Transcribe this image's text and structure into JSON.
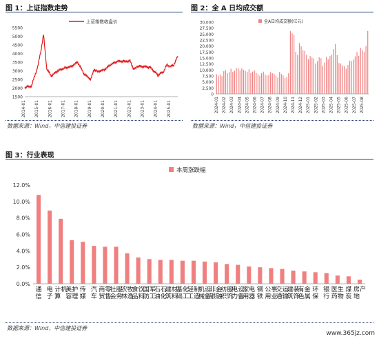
{
  "fig1": {
    "title": "图 1：上证指数走势",
    "source": "数据来源：Wind，中信建投证券"
  },
  "fig2": {
    "title": "图 2：全 A 日均成交额",
    "source": "数据来源：Wind，中信建投证券"
  },
  "fig3": {
    "title": "图 3：行业表现",
    "source": "数据来源：Wind，中信建投证券"
  },
  "watermark": "www.365jz.com",
  "chart_data": [
    {
      "type": "line",
      "legend": "上证指数收盘价",
      "x": [
        "2014-01",
        "2014-07",
        "2015-01",
        "2015-04",
        "2015-06",
        "2015-09",
        "2016-01",
        "2016-07",
        "2017-01",
        "2017-07",
        "2018-01",
        "2018-07",
        "2019-01",
        "2019-04",
        "2019-07",
        "2020-01",
        "2020-07",
        "2021-01",
        "2021-07",
        "2022-01",
        "2022-04",
        "2022-07",
        "2023-01",
        "2023-07",
        "2024-01",
        "2024-02",
        "2024-07",
        "2024-10",
        "2025-01",
        "2025-04",
        "2025-08"
      ],
      "values": [
        2050,
        2100,
        3300,
        4300,
        5100,
        3100,
        2700,
        3000,
        3150,
        3250,
        3500,
        2800,
        2500,
        3100,
        2950,
        3050,
        3350,
        3550,
        3550,
        3550,
        3050,
        3250,
        3250,
        3200,
        2800,
        2750,
        2950,
        3350,
        3250,
        3300,
        3850
      ],
      "x_ticks": [
        "2014-01",
        "2015-01",
        "2016-01",
        "2017-01",
        "2018-01",
        "2019-01",
        "2020-01",
        "2021-01",
        "2022-01",
        "2023-01",
        "2024-01",
        "2025-01"
      ],
      "ylim": [
        1500,
        5500
      ],
      "y_ticks": [
        1500,
        2000,
        2500,
        3000,
        3500,
        4000,
        4500,
        5000,
        5500
      ],
      "color": "#e31a1c"
    },
    {
      "type": "bar",
      "legend": "全A日均成交额(亿元)",
      "values": [
        8200,
        7600,
        8100,
        7400,
        9500,
        9900,
        8700,
        9100,
        10500,
        9200,
        9700,
        10700,
        10800,
        9800,
        10600,
        10100,
        9600,
        9300,
        10300,
        8700,
        9300,
        9800,
        8800,
        8300,
        7600,
        8700,
        9300,
        8100,
        7700,
        7900,
        9100,
        8600,
        8400,
        7600,
        6800,
        9200,
        8300,
        7700,
        6700,
        7100,
        8600,
        26200,
        25300,
        24700,
        17600,
        16300,
        21200,
        19900,
        18200,
        18000,
        16400,
        14500,
        15800,
        15200,
        14800,
        12600,
        13700,
        15300,
        14900,
        11700,
        13100,
        15400,
        14400,
        15800,
        16400,
        18700,
        20900,
        16200,
        12900,
        12700,
        11900,
        11600,
        10500,
        12100,
        13900,
        13700,
        14300,
        15700,
        17500,
        15900,
        19200,
        18300,
        17600,
        19900,
        26300
      ],
      "x_ticks": [
        "2024-01",
        "2024-02",
        "2024-03",
        "2024-04",
        "2024-05",
        "2024-06",
        "2024-07",
        "2024-08",
        "2024-09",
        "2024-10",
        "2024-11",
        "2024-12",
        "2025-01",
        "2025-02",
        "2025-03",
        "2025-04",
        "2025-05",
        "2025-06",
        "2025-07",
        "2025-08"
      ],
      "ylim": [
        0,
        30000
      ],
      "y_ticks": [
        "0",
        "2,500",
        "5,000",
        "7,500",
        "10,000",
        "12,500",
        "15,000",
        "17,500",
        "20,000",
        "22,500",
        "25,000",
        "27,500",
        "30,000"
      ],
      "color": "#f08080"
    },
    {
      "type": "bar",
      "legend": "本周涨跌幅",
      "categories": [
        "通信",
        "电子",
        "计算机",
        "美容护理",
        "传媒",
        "汽车",
        "商贸零售",
        "社会服务",
        "农林牧渔",
        "食品饮料",
        "国防军工",
        "石油石化",
        "建筑材料",
        "基础化工",
        "轻工制造",
        "机械设备",
        "非银金融",
        "纺织服饰",
        "电力设备",
        "家用电器",
        "钢铁",
        "公用事业",
        "交通运输",
        "建筑装饰",
        "有色金属",
        "环保",
        "银行",
        "医药生物",
        "煤炭",
        "房地产"
      ],
      "values": [
        10.8,
        8.9,
        7.9,
        5.3,
        5.1,
        4.6,
        4.5,
        4.5,
        3.7,
        3.2,
        3.0,
        2.9,
        2.9,
        2.8,
        2.8,
        2.7,
        2.6,
        2.4,
        2.3,
        2.1,
        2.0,
        1.9,
        1.8,
        1.6,
        1.5,
        1.4,
        1.3,
        1.0,
        0.9,
        0.5
      ],
      "ylim": [
        0,
        12
      ],
      "y_ticks": [
        "0.0%",
        "2.0%",
        "4.0%",
        "6.0%",
        "8.0%",
        "10.0%",
        "12.0%"
      ],
      "color": "#f08080"
    }
  ]
}
